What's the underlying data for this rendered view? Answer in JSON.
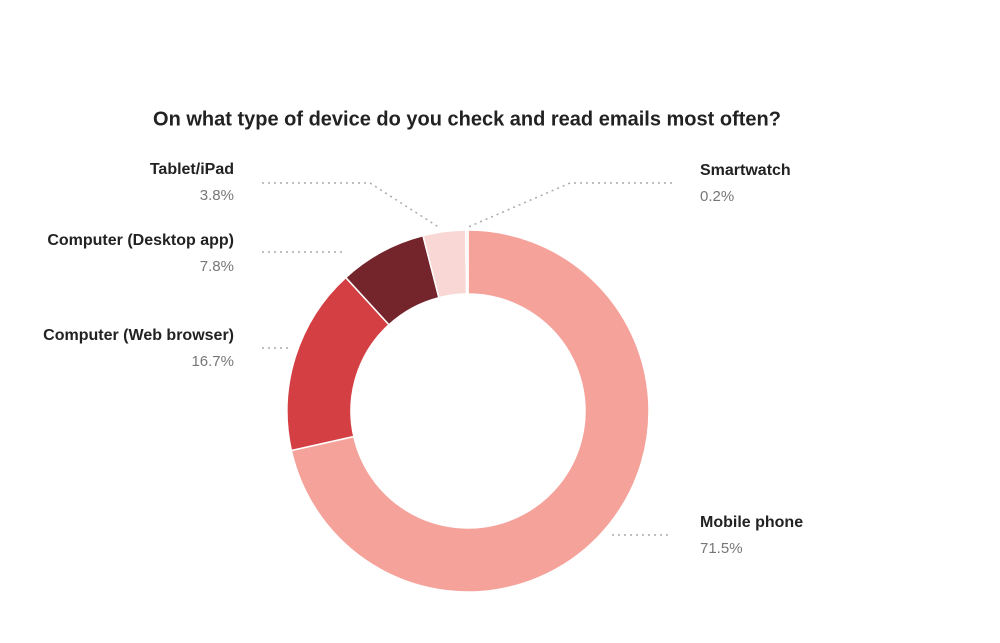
{
  "chart_data": {
    "type": "donut",
    "title": "On what type of device do you check and read emails most often?",
    "categories": [
      "Mobile phone",
      "Computer (Web browser)",
      "Computer (Desktop app)",
      "Tablet/iPad",
      "Smartwatch"
    ],
    "values": [
      71.5,
      16.7,
      7.8,
      3.8,
      0.2
    ],
    "value_labels": [
      "71.5%",
      "16.7%",
      "7.8%",
      "3.8%",
      "0.2%"
    ],
    "colors": [
      "#f5a29b",
      "#d33f43",
      "#74252b",
      "#f8d7d4",
      "#fbe8e6"
    ]
  }
}
